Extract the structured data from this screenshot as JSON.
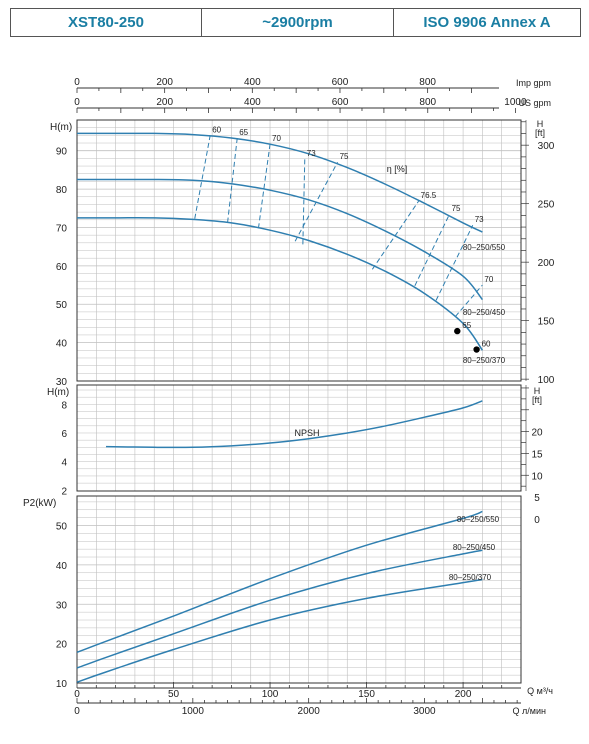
{
  "header": {
    "model": "XST80-250",
    "speed": "~2900rpm",
    "standard": "ISO 9906   Annex A"
  },
  "colors": {
    "curve": "#2f7fb0",
    "efficiency_lines": "#2f7fb0",
    "grid": "#bfbfbf",
    "header_text": "#1a7ea3"
  },
  "chart_data": [
    {
      "panel": "head",
      "type": "line",
      "ylabel": "H(m)",
      "ylabel_right": "H [ft]",
      "yticks": [
        30,
        40,
        50,
        60,
        70,
        80,
        90
      ],
      "yticks_right": [
        100,
        150,
        200,
        250,
        300
      ],
      "ylim": [
        30,
        98
      ],
      "xlim_m3h": [
        0,
        230
      ],
      "top_axis_imp": {
        "label": "Imp gpm",
        "ticks": [
          0,
          200,
          400,
          600,
          800
        ]
      },
      "top_axis_us": {
        "label": "US gpm",
        "ticks": [
          0,
          200,
          400,
          600,
          800,
          1000
        ]
      },
      "series": [
        {
          "name": "80–250/550",
          "x": [
            0,
            15,
            40,
            60,
            80,
            100,
            120,
            140,
            160,
            180,
            200,
            210
          ],
          "y": [
            94.5,
            94.5,
            94.5,
            94.2,
            93.3,
            91.7,
            89.2,
            85.6,
            81.2,
            76.3,
            71.2,
            68.8
          ]
        },
        {
          "name": "80–250/450",
          "x": [
            0,
            15,
            40,
            60,
            80,
            100,
            120,
            140,
            160,
            180,
            200,
            210
          ],
          "y": [
            82.5,
            82.5,
            82.5,
            82.3,
            81.4,
            79.7,
            77.2,
            73.6,
            69.0,
            63.7,
            57.3,
            51.2
          ]
        },
        {
          "name": "80–250/370",
          "x": [
            0,
            15,
            40,
            60,
            80,
            100,
            120,
            140,
            160,
            180,
            200,
            210
          ],
          "y": [
            72.5,
            72.5,
            72.5,
            72.1,
            71.2,
            69.3,
            66.6,
            63.0,
            58.5,
            52.8,
            45.0,
            38.0
          ]
        }
      ],
      "efficiency_label": "η [%]",
      "efficiency_lines": [
        {
          "label": "60",
          "from": [
            61,
            72.3
          ],
          "to": [
            69,
            94.0
          ]
        },
        {
          "label": "65",
          "from": [
            78,
            71.3
          ],
          "to": [
            83,
            93.3
          ]
        },
        {
          "label": "70",
          "from": [
            94,
            69.8
          ],
          "to": [
            100,
            91.7
          ]
        },
        {
          "label": "75",
          "from": [
            113,
            66.4
          ],
          "to": [
            135,
            87.0
          ]
        },
        {
          "label": "76.5",
          "from": [
            153,
            59.1
          ],
          "to": [
            177,
            76.9
          ]
        },
        {
          "label": "75",
          "from": [
            175,
            54.8
          ],
          "to": [
            193,
            73.5
          ]
        },
        {
          "label": "73",
          "from": [
            186,
            51.0
          ],
          "to": [
            205,
            70.6
          ]
        },
        {
          "label": "70",
          "from": [
            196,
            46.8
          ],
          "to": [
            210,
            55.0
          ]
        },
        {
          "label": "73",
          "from": [
            117,
            65.6
          ],
          "to": [
            118,
            87.9
          ]
        }
      ],
      "points": [
        {
          "label": "65",
          "x": 197,
          "y": 43.0
        },
        {
          "label": "60",
          "x": 207,
          "y": 38.2
        }
      ]
    },
    {
      "panel": "npsh",
      "type": "line",
      "ylabel": "H(m)",
      "ylabel_right": "H [ft]",
      "yticks": [
        2,
        4,
        6,
        8
      ],
      "yticks_right": [
        0,
        5,
        10,
        15,
        20
      ],
      "ylim": [
        1.95,
        9.35
      ],
      "series": [
        {
          "name": "NPSH",
          "x": [
            15,
            40,
            60,
            80,
            100,
            120,
            140,
            160,
            180,
            200,
            210
          ],
          "y": [
            5.05,
            5.0,
            5.0,
            5.1,
            5.3,
            5.6,
            6.0,
            6.5,
            7.1,
            7.75,
            8.25
          ]
        }
      ]
    },
    {
      "panel": "power",
      "type": "line",
      "ylabel": "P2(kW)",
      "yticks": [
        10,
        20,
        30,
        40,
        50
      ],
      "ylim": [
        10,
        57.5
      ],
      "xlabel": "Q  м³/ч",
      "xticks": [
        0,
        50,
        100,
        150,
        200
      ],
      "xlabel2": "Q  л/мин",
      "xticks2": [
        0,
        1000,
        2000,
        3000
      ],
      "series": [
        {
          "name": "80–250/550",
          "x": [
            0,
            15,
            50,
            100,
            150,
            200,
            210
          ],
          "y": [
            17.8,
            20.6,
            27.0,
            36.5,
            45.0,
            51.8,
            53.6
          ]
        },
        {
          "name": "80–250/450",
          "x": [
            0,
            15,
            50,
            100,
            150,
            200,
            210
          ],
          "y": [
            13.8,
            16.5,
            22.5,
            31.0,
            37.8,
            42.8,
            43.7
          ]
        },
        {
          "name": "80–250/370",
          "x": [
            0,
            15,
            50,
            100,
            150,
            200,
            210
          ],
          "y": [
            10.2,
            12.8,
            18.5,
            26.0,
            31.5,
            35.5,
            36.3
          ]
        }
      ]
    }
  ]
}
